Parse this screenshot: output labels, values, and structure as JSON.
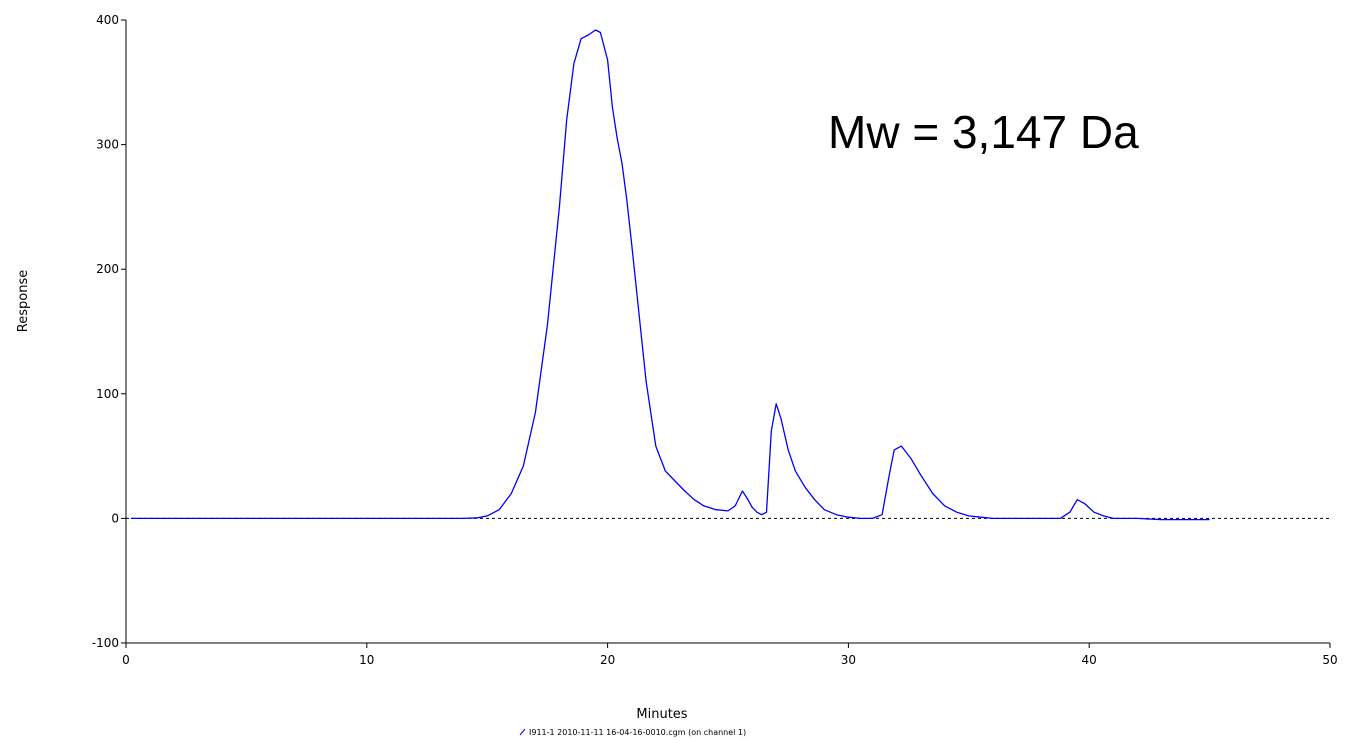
{
  "chart_data": {
    "type": "line",
    "title": "",
    "xlabel": "Minutes",
    "ylabel": "Response",
    "xlim": [
      0,
      50
    ],
    "ylim": [
      -100,
      400
    ],
    "x_ticks": [
      0,
      10,
      20,
      30,
      40,
      50
    ],
    "y_ticks": [
      -100,
      0,
      100,
      200,
      300,
      400
    ],
    "x_tick_labels": [
      "0",
      "10",
      "20",
      "30",
      "40",
      "50"
    ],
    "y_tick_labels": [
      "-100",
      "0",
      "100",
      "200",
      "300",
      "400"
    ],
    "grid": false,
    "baseline": {
      "y": 0,
      "style": "dashed",
      "color": "#000000"
    },
    "annotation": "Mw = 3,147 Da",
    "legend": {
      "placement": "bottom-center",
      "entry": "I911-1 2010-11-11 16-04-16-0010.cgm (on channel 1)"
    },
    "series": [
      {
        "name": "I911-1 2010-11-11 16-04-16-0010.cgm (on channel 1)",
        "color": "#0000ff",
        "x": [
          0.2,
          2,
          4,
          6,
          8,
          10,
          12,
          13,
          14,
          14.6,
          15,
          15.5,
          16,
          16.5,
          17,
          17.5,
          18,
          18.3,
          18.6,
          18.9,
          19.2,
          19.5,
          19.7,
          20,
          20.2,
          20.4,
          20.6,
          20.8,
          21,
          21.3,
          21.6,
          22,
          22.4,
          22.8,
          23.2,
          23.6,
          24,
          24.5,
          25,
          25.3,
          25.6,
          25.8,
          26,
          26.2,
          26.4,
          26.6,
          26.8,
          27,
          27.2,
          27.5,
          27.8,
          28.2,
          28.6,
          29,
          29.5,
          30,
          30.5,
          31,
          31.4,
          31.7,
          31.9,
          32.2,
          32.6,
          33,
          33.5,
          34,
          34.5,
          35,
          35.5,
          36,
          37,
          38,
          38.8,
          39.2,
          39.5,
          39.8,
          40.2,
          40.6,
          41,
          42,
          43,
          44,
          45
        ],
        "y": [
          0,
          0,
          0,
          0,
          0,
          0,
          0,
          0,
          0,
          0.5,
          2,
          7,
          20,
          42,
          85,
          155,
          250,
          320,
          365,
          385,
          388,
          392,
          390,
          368,
          330,
          305,
          285,
          255,
          220,
          165,
          110,
          58,
          38,
          30,
          22,
          15,
          10,
          7,
          6,
          10,
          22,
          16,
          9,
          5,
          3,
          5,
          70,
          92,
          80,
          55,
          38,
          25,
          15,
          7,
          3,
          1,
          0,
          0,
          3,
          35,
          55,
          58,
          48,
          35,
          20,
          10,
          5,
          2,
          1,
          0,
          0,
          0,
          0,
          5,
          15,
          12,
          5,
          2,
          0,
          0,
          -1,
          -1,
          -1
        ]
      }
    ]
  }
}
